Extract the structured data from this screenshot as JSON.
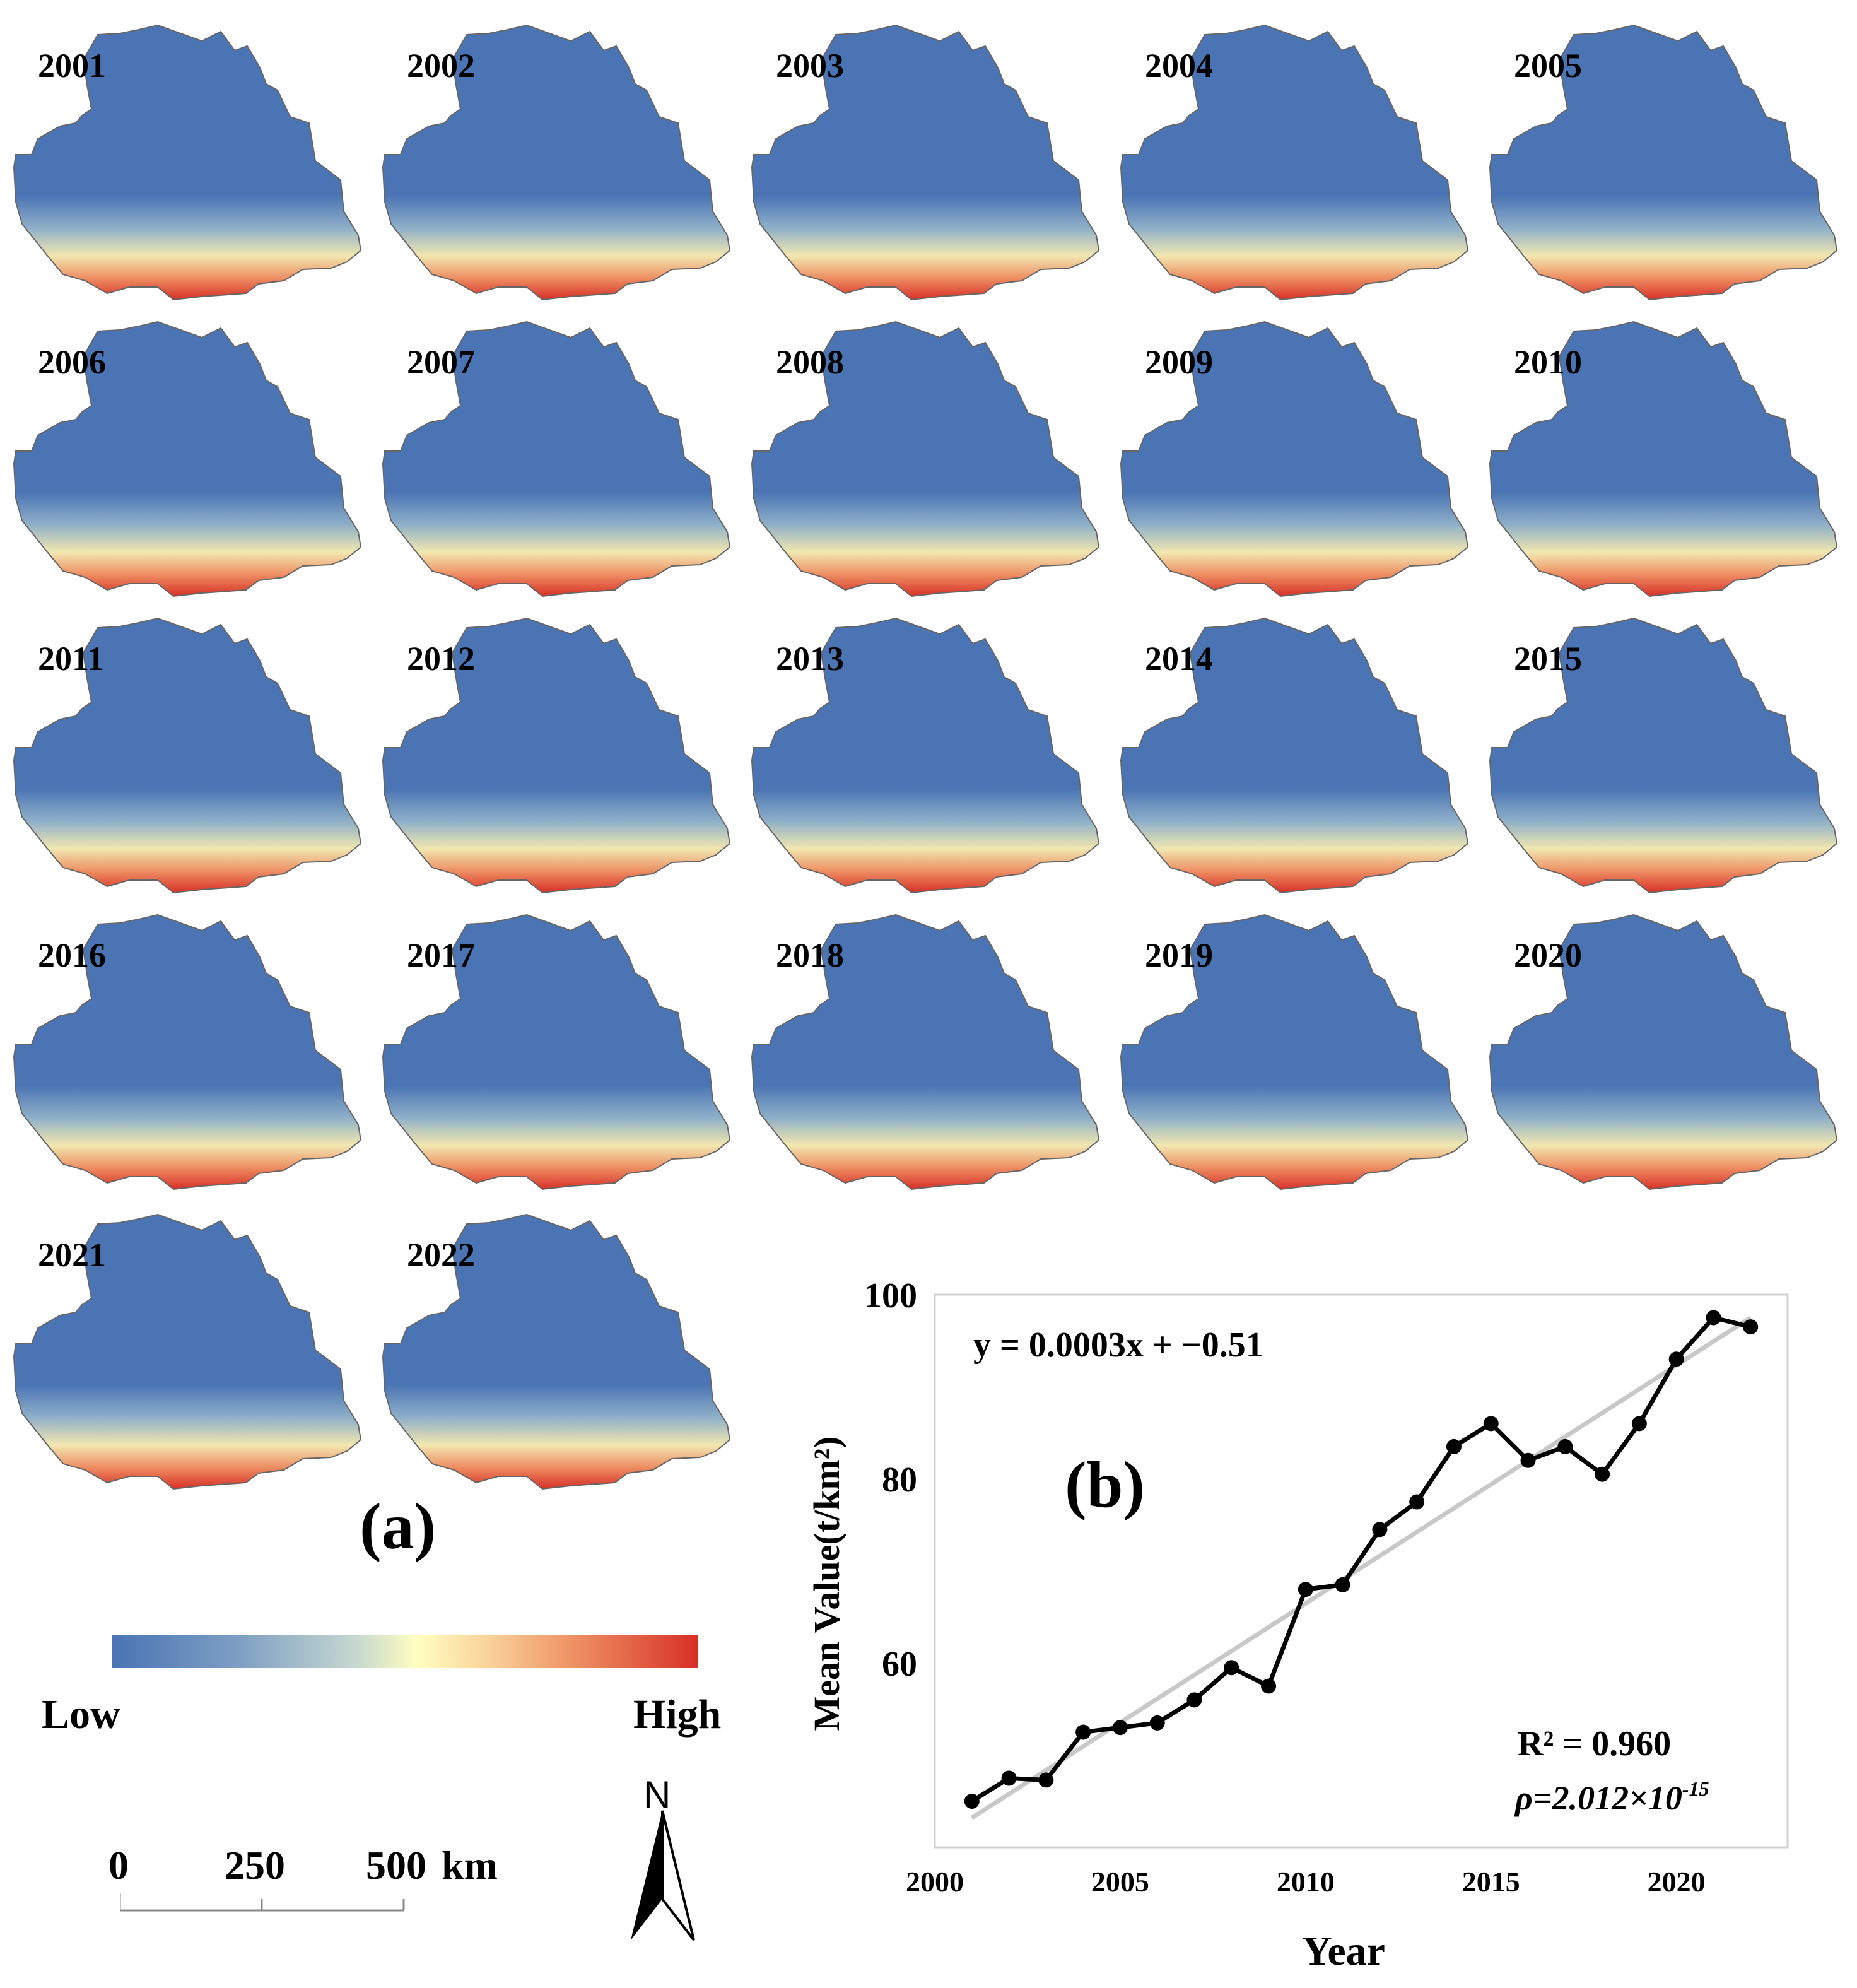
{
  "panel_a": {
    "label": "(a)",
    "years": [
      "2001",
      "2002",
      "2003",
      "2004",
      "2005",
      "2006",
      "2007",
      "2008",
      "2009",
      "2010",
      "2011",
      "2012",
      "2013",
      "2014",
      "2015",
      "2016",
      "2017",
      "2018",
      "2019",
      "2020",
      "2021",
      "2022"
    ]
  },
  "legend": {
    "low": "Low",
    "high": "High",
    "colors": [
      "#4a74b4",
      "#ffffc0",
      "#d73027"
    ]
  },
  "scale_bar": {
    "ticks": [
      "0",
      "250",
      "500"
    ],
    "unit": "km"
  },
  "north": "N",
  "chart_data": {
    "type": "line",
    "panel_label": "(b)",
    "x": [
      2001,
      2002,
      2003,
      2004,
      2005,
      2006,
      2007,
      2008,
      2009,
      2010,
      2011,
      2012,
      2013,
      2014,
      2015,
      2016,
      2017,
      2018,
      2019,
      2020,
      2021,
      2022
    ],
    "series": [
      {
        "name": "Mean Value",
        "values": [
          45.0,
          47.5,
          47.3,
          52.5,
          53.0,
          53.5,
          56.0,
          59.5,
          57.5,
          68.0,
          68.5,
          74.5,
          77.5,
          83.5,
          86.0,
          82.0,
          83.5,
          80.5,
          86.0,
          93.0,
          97.5,
          96.5
        ]
      }
    ],
    "trendline": {
      "x": [
        2001,
        2022
      ],
      "y": [
        43.2,
        97.5
      ],
      "color": "#c8c8c8"
    },
    "equation": "y = 0.0003x + −0.51",
    "r2": "R² = 0.960",
    "rho": "ρ=2.012×10",
    "rho_exp": "-15",
    "xlabel": "Year",
    "ylabel": "Mean Value(t/km²)",
    "xticks": [
      "2000",
      "2005",
      "2010",
      "2015",
      "2020"
    ],
    "yticks": [
      "60",
      "80",
      "100"
    ],
    "xlim": [
      2000,
      2023
    ],
    "ylim": [
      40,
      100
    ],
    "grid": false
  }
}
